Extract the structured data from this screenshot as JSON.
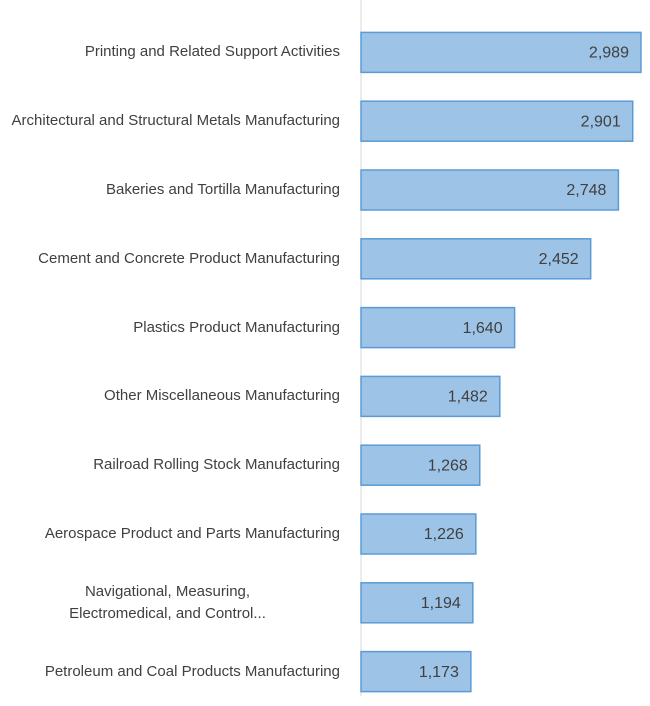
{
  "chart_data": {
    "type": "bar",
    "orientation": "horizontal",
    "categories": [
      "Printing and Related Support Activities",
      "Architectural and Structural Metals Manufacturing",
      "Bakeries and Tortilla Manufacturing",
      "Cement and Concrete Product Manufacturing",
      "Plastics Product Manufacturing",
      "Other Miscellaneous Manufacturing",
      "Railroad Rolling Stock Manufacturing",
      "Aerospace Product and Parts Manufacturing",
      "Navigational, Measuring, Electromedical, and Control...",
      "Petroleum and Coal Products Manufacturing"
    ],
    "values": [
      2989,
      2901,
      2748,
      2452,
      1640,
      1482,
      1268,
      1226,
      1194,
      1173
    ],
    "value_labels": [
      "2,989",
      "2,901",
      "2,748",
      "2,452",
      "1,640",
      "1,482",
      "1,268",
      "1,226",
      "1,194",
      "1,173"
    ],
    "color": "#9dc3e6",
    "edge_color": "#5b9bd5",
    "xlim": [
      0,
      3000
    ]
  }
}
